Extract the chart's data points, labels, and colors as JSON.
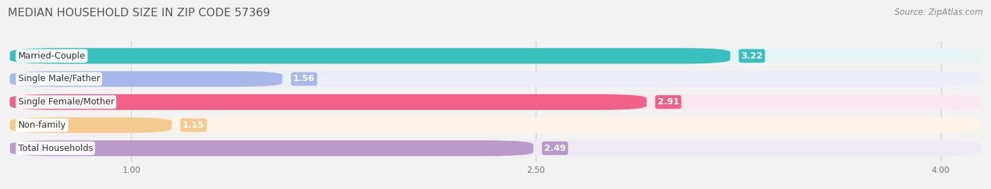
{
  "title": "MEDIAN HOUSEHOLD SIZE IN ZIP CODE 57369",
  "source": "Source: ZipAtlas.com",
  "categories": [
    "Married-Couple",
    "Single Male/Father",
    "Single Female/Mother",
    "Non-family",
    "Total Households"
  ],
  "values": [
    3.22,
    1.56,
    2.91,
    1.15,
    2.49
  ],
  "bar_colors": [
    "#3abfbf",
    "#a8b8e8",
    "#f0608a",
    "#f5ca90",
    "#b89bcc"
  ],
  "bar_bg_colors": [
    "#e5f4f4",
    "#eceef8",
    "#fce8f0",
    "#fdf3e7",
    "#eeebf5"
  ],
  "xlim_min": 0.55,
  "xlim_max": 4.15,
  "xticks": [
    1.0,
    2.5,
    4.0
  ],
  "value_labels": [
    "3.22",
    "1.56",
    "2.91",
    "1.15",
    "2.49"
  ],
  "title_fontsize": 11.5,
  "source_fontsize": 8.5,
  "label_fontsize": 9,
  "value_fontsize": 9,
  "bar_height": 0.68,
  "bar_gap": 0.18,
  "background_color": "#f2f2f2",
  "grid_color": "#d0d0d0",
  "text_color": "#555555",
  "source_color": "#888888"
}
